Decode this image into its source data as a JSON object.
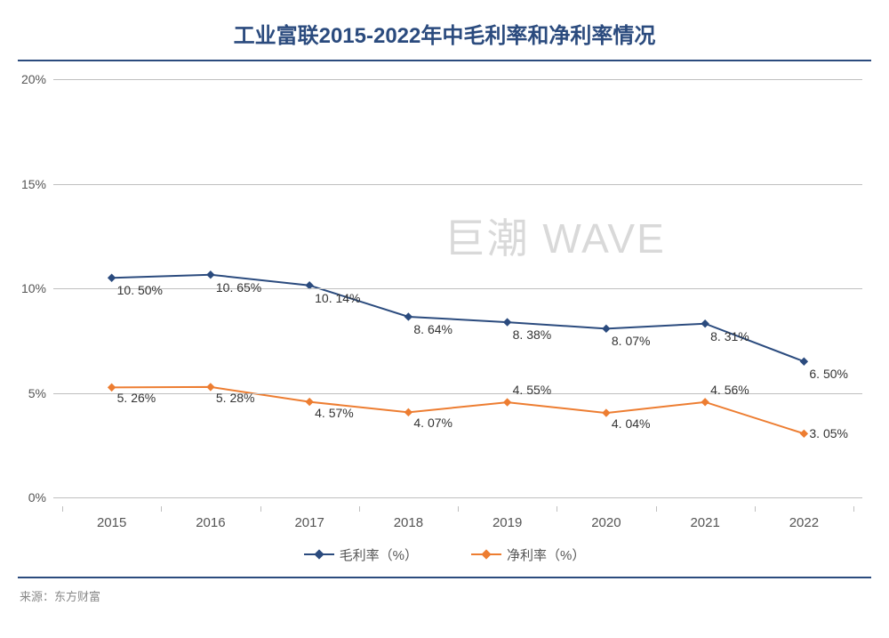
{
  "title": "工业富联2015-2022年中毛利率和净利率情况",
  "source_label": "来源：东方财富",
  "watermark": "巨潮 WAVE",
  "chart": {
    "type": "line",
    "background_color": "#ffffff",
    "title_color": "#2b4b7e",
    "title_fontsize": 24,
    "rule_color": "#2b4b7e",
    "grid_color": "#bfbfbf",
    "axis_label_color": "#555555",
    "axis_fontsize": 14,
    "data_label_fontsize": 14,
    "watermark_color": "#d9d9d9",
    "watermark_fontsize": 46,
    "ylim": [
      0,
      20
    ],
    "ytick_step": 5,
    "ytick_suffix": "%",
    "categories": [
      "2015",
      "2016",
      "2017",
      "2018",
      "2019",
      "2020",
      "2021",
      "2022"
    ],
    "marker_size": 8,
    "line_width": 2,
    "series": [
      {
        "name": "毛利率（%）",
        "color": "#2b4b7e",
        "marker": "diamond",
        "values": [
          10.5,
          10.65,
          10.14,
          8.64,
          8.38,
          8.07,
          8.31,
          6.5
        ],
        "labels": [
          "10. 50%",
          "10. 65%",
          "10. 14%",
          "8. 64%",
          "8. 38%",
          "8. 07%",
          "8. 31%",
          "6. 50%"
        ],
        "label_position": "below"
      },
      {
        "name": "净利率（%）",
        "color": "#ed7d31",
        "marker": "diamond",
        "values": [
          5.26,
          5.28,
          4.57,
          4.07,
          4.55,
          4.04,
          4.56,
          3.05
        ],
        "labels": [
          "5. 26%",
          "5. 28%",
          "4. 57%",
          "4. 07%",
          "4. 55%",
          "4. 04%",
          "4. 56%",
          "3. 05%"
        ],
        "label_position": "mixed"
      }
    ],
    "legend_position": "bottom"
  }
}
